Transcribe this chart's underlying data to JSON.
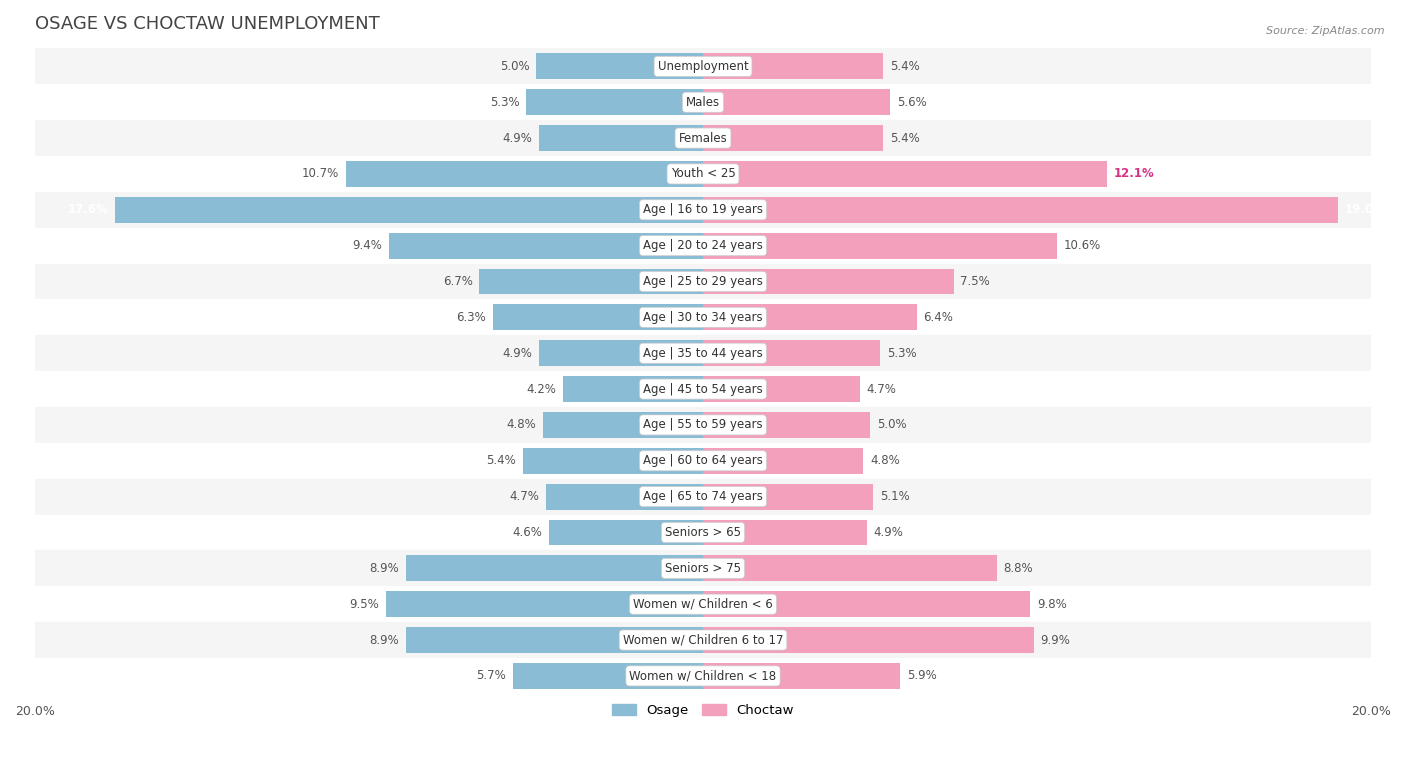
{
  "title": "OSAGE VS CHOCTAW UNEMPLOYMENT",
  "source": "Source: ZipAtlas.com",
  "categories": [
    "Unemployment",
    "Males",
    "Females",
    "Youth < 25",
    "Age | 16 to 19 years",
    "Age | 20 to 24 years",
    "Age | 25 to 29 years",
    "Age | 30 to 34 years",
    "Age | 35 to 44 years",
    "Age | 45 to 54 years",
    "Age | 55 to 59 years",
    "Age | 60 to 64 years",
    "Age | 65 to 74 years",
    "Seniors > 65",
    "Seniors > 75",
    "Women w/ Children < 6",
    "Women w/ Children 6 to 17",
    "Women w/ Children < 18"
  ],
  "osage": [
    5.0,
    5.3,
    4.9,
    10.7,
    17.6,
    9.4,
    6.7,
    6.3,
    4.9,
    4.2,
    4.8,
    5.4,
    4.7,
    4.6,
    8.9,
    9.5,
    8.9,
    5.7
  ],
  "choctaw": [
    5.4,
    5.6,
    5.4,
    12.1,
    19.0,
    10.6,
    7.5,
    6.4,
    5.3,
    4.7,
    5.0,
    4.8,
    5.1,
    4.9,
    8.8,
    9.8,
    9.9,
    5.9
  ],
  "osage_color": "#8bbcd6",
  "choctaw_color": "#f2a0bb",
  "osage_label": "Osage",
  "choctaw_label": "Choctaw",
  "xlim": 20.0,
  "bar_height": 0.72,
  "row_bg_even": "#f5f5f5",
  "row_bg_odd": "#ffffff",
  "label_fontsize": 8.5,
  "value_fontsize": 8.5,
  "title_fontsize": 13
}
